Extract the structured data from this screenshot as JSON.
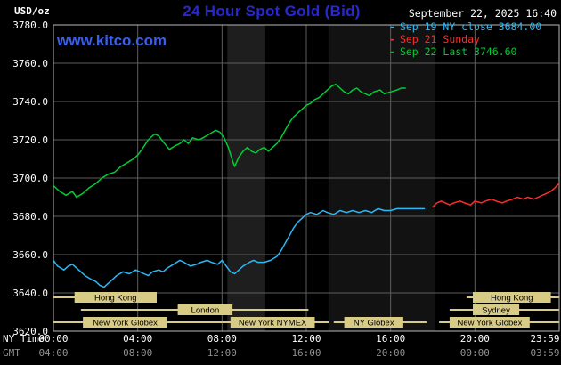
{
  "header": {
    "units": "USD/oz",
    "title": "24 Hour Spot Gold (Bid)",
    "datetime": "September 22, 2025 16:40",
    "watermark": "www.kitco.com",
    "legend": [
      {
        "label": "Sep 19 NY close 3684.00",
        "color": "#2cb8f5"
      },
      {
        "label": "Sep 21 Sunday",
        "color": "#ff2a2a"
      },
      {
        "label": "Sep 22 Last 3746.60",
        "color": "#00cc33"
      }
    ]
  },
  "colors": {
    "background": "#000000",
    "title": "#2828cf",
    "watermark": "#3a5fe8",
    "grid": "#5e5e5e",
    "frame": "#b8b8b8",
    "session": "#d8cb86",
    "ny_axis_text": "#ffffff",
    "gmt_axis_text": "#8f8f8f"
  },
  "axes": {
    "y_ticks": [
      "3780.0",
      "3760.0",
      "3740.0",
      "3720.0",
      "3700.0",
      "3680.0",
      "3660.0",
      "3640.0",
      "3620.0"
    ],
    "x_label_ny": "NY Time",
    "x_label_gmt": "GMT",
    "x_ticks_ny": [
      "00:00",
      "04:00",
      "08:00",
      "12:00",
      "16:00",
      "20:00",
      "23:59"
    ],
    "x_ticks_gmt": [
      "04:00",
      "08:00",
      "12:00",
      "16:00",
      "20:00",
      "00:00",
      "03:59"
    ]
  },
  "sessions": [
    {
      "row": 0,
      "bar": [
        0,
        4.9
      ],
      "label": "Hong Kong",
      "label_span": [
        1.0,
        4.9
      ]
    },
    {
      "row": 0,
      "bar": [
        19.6,
        23.98
      ],
      "label": "Hong Kong",
      "label_span": [
        19.9,
        23.6
      ]
    },
    {
      "row": 1,
      "bar": [
        1.3,
        12.1
      ],
      "label": "London",
      "label_span": [
        5.9,
        8.5
      ]
    },
    {
      "row": 1,
      "bar": [
        18.8,
        23.98
      ],
      "label": "Sydney",
      "label_span": [
        19.9,
        22.1
      ]
    },
    {
      "row": 2,
      "bar": [
        0,
        8.0
      ],
      "label": "New York Globex",
      "label_span": [
        1.4,
        5.4
      ]
    },
    {
      "row": 2,
      "bar": [
        8.0,
        13.1
      ],
      "label": "New York NYMEX",
      "label_span": [
        8.4,
        12.4
      ]
    },
    {
      "row": 2,
      "bar": [
        13.3,
        17.7
      ],
      "label": "NY Globex",
      "label_span": [
        13.8,
        16.6
      ]
    },
    {
      "row": 2,
      "bar": [
        18.3,
        23.98
      ],
      "label": "New York Globex",
      "label_span": [
        18.8,
        22.6
      ]
    }
  ],
  "chart_data": {
    "type": "line",
    "title": "24 Hour Spot Gold (Bid)",
    "xlabel": "NY Time (hours 00:00-23:59)",
    "ylabel": "USD/oz",
    "ylim": [
      3620,
      3780
    ],
    "xlim_hours": [
      0,
      24
    ],
    "grid": true,
    "legend_position": "top-right",
    "bands": [
      {
        "start": 8.25,
        "end": 10.05,
        "color": "#1e1e1e"
      },
      {
        "start": 13.05,
        "end": 18.1,
        "color": "#121212"
      }
    ],
    "series": [
      {
        "id": "sep19",
        "name": "Sep 19 NY close 3684.00",
        "color": "#2cb8f5",
        "points": [
          [
            0,
            3657
          ],
          [
            0.2,
            3654
          ],
          [
            0.5,
            3652
          ],
          [
            0.7,
            3654
          ],
          [
            0.9,
            3655
          ],
          [
            1.1,
            3653
          ],
          [
            1.3,
            3651
          ],
          [
            1.5,
            3649
          ],
          [
            1.8,
            3647
          ],
          [
            2,
            3646
          ],
          [
            2.2,
            3644
          ],
          [
            2.4,
            3643
          ],
          [
            2.6,
            3645
          ],
          [
            2.8,
            3647
          ],
          [
            3,
            3649
          ],
          [
            3.3,
            3651
          ],
          [
            3.6,
            3650
          ],
          [
            3.9,
            3652
          ],
          [
            4.1,
            3651
          ],
          [
            4.3,
            3650
          ],
          [
            4.5,
            3649
          ],
          [
            4.7,
            3651
          ],
          [
            5,
            3652
          ],
          [
            5.2,
            3651
          ],
          [
            5.4,
            3653
          ],
          [
            5.7,
            3655
          ],
          [
            6,
            3657
          ],
          [
            6.2,
            3656
          ],
          [
            6.5,
            3654
          ],
          [
            6.8,
            3655
          ],
          [
            7,
            3656
          ],
          [
            7.3,
            3657
          ],
          [
            7.5,
            3656
          ],
          [
            7.8,
            3655
          ],
          [
            8,
            3657
          ],
          [
            8.2,
            3654
          ],
          [
            8.4,
            3651
          ],
          [
            8.6,
            3650
          ],
          [
            8.8,
            3652
          ],
          [
            9,
            3654
          ],
          [
            9.3,
            3656
          ],
          [
            9.5,
            3657
          ],
          [
            9.7,
            3656
          ],
          [
            10,
            3656
          ],
          [
            10.3,
            3657
          ],
          [
            10.6,
            3659
          ],
          [
            10.8,
            3662
          ],
          [
            11,
            3666
          ],
          [
            11.2,
            3670
          ],
          [
            11.4,
            3674
          ],
          [
            11.6,
            3677
          ],
          [
            11.8,
            3679
          ],
          [
            12,
            3681
          ],
          [
            12.2,
            3682
          ],
          [
            12.5,
            3681
          ],
          [
            12.8,
            3683
          ],
          [
            13,
            3682
          ],
          [
            13.3,
            3681
          ],
          [
            13.6,
            3683
          ],
          [
            13.9,
            3682
          ],
          [
            14.2,
            3683
          ],
          [
            14.5,
            3682
          ],
          [
            14.8,
            3683
          ],
          [
            15.1,
            3682
          ],
          [
            15.4,
            3684
          ],
          [
            15.7,
            3683
          ],
          [
            16,
            3683
          ],
          [
            16.3,
            3684
          ],
          [
            16.7,
            3684
          ],
          [
            17.1,
            3684
          ],
          [
            17.6,
            3684
          ]
        ]
      },
      {
        "id": "sep21",
        "name": "Sep 21 Sunday",
        "color": "#ff2a2a",
        "points": [
          [
            18,
            3685
          ],
          [
            18.2,
            3687
          ],
          [
            18.4,
            3688
          ],
          [
            18.6,
            3687
          ],
          [
            18.8,
            3686
          ],
          [
            19,
            3687
          ],
          [
            19.3,
            3688
          ],
          [
            19.5,
            3687
          ],
          [
            19.8,
            3686
          ],
          [
            20,
            3688
          ],
          [
            20.3,
            3687
          ],
          [
            20.5,
            3688
          ],
          [
            20.8,
            3689
          ],
          [
            21,
            3688
          ],
          [
            21.3,
            3687
          ],
          [
            21.5,
            3688
          ],
          [
            21.8,
            3689
          ],
          [
            22,
            3690
          ],
          [
            22.3,
            3689
          ],
          [
            22.5,
            3690
          ],
          [
            22.8,
            3689
          ],
          [
            23,
            3690
          ],
          [
            23.2,
            3691
          ],
          [
            23.4,
            3692
          ],
          [
            23.6,
            3693
          ],
          [
            23.8,
            3695
          ],
          [
            23.97,
            3697
          ]
        ]
      },
      {
        "id": "sep22",
        "name": "Sep 22 Last 3746.60",
        "color": "#00cc33",
        "points": [
          [
            0,
            3696
          ],
          [
            0.3,
            3693
          ],
          [
            0.6,
            3691
          ],
          [
            0.9,
            3693
          ],
          [
            1.1,
            3690
          ],
          [
            1.4,
            3692
          ],
          [
            1.7,
            3695
          ],
          [
            2,
            3697
          ],
          [
            2.3,
            3700
          ],
          [
            2.6,
            3702
          ],
          [
            2.9,
            3703
          ],
          [
            3.2,
            3706
          ],
          [
            3.5,
            3708
          ],
          [
            3.8,
            3710
          ],
          [
            4,
            3712
          ],
          [
            4.2,
            3715
          ],
          [
            4.5,
            3720
          ],
          [
            4.8,
            3723
          ],
          [
            5,
            3722
          ],
          [
            5.2,
            3719
          ],
          [
            5.5,
            3715
          ],
          [
            5.8,
            3717
          ],
          [
            6,
            3718
          ],
          [
            6.2,
            3720
          ],
          [
            6.4,
            3718
          ],
          [
            6.6,
            3721
          ],
          [
            6.9,
            3720
          ],
          [
            7.1,
            3721
          ],
          [
            7.4,
            3723
          ],
          [
            7.7,
            3725
          ],
          [
            7.9,
            3724
          ],
          [
            8.1,
            3721
          ],
          [
            8.3,
            3716
          ],
          [
            8.5,
            3709
          ],
          [
            8.6,
            3706
          ],
          [
            8.8,
            3711
          ],
          [
            9,
            3714
          ],
          [
            9.2,
            3716
          ],
          [
            9.4,
            3714
          ],
          [
            9.6,
            3713
          ],
          [
            9.8,
            3715
          ],
          [
            10,
            3716
          ],
          [
            10.2,
            3714
          ],
          [
            10.4,
            3716
          ],
          [
            10.6,
            3718
          ],
          [
            10.8,
            3721
          ],
          [
            11,
            3725
          ],
          [
            11.2,
            3729
          ],
          [
            11.4,
            3732
          ],
          [
            11.6,
            3734
          ],
          [
            11.8,
            3736
          ],
          [
            12,
            3738
          ],
          [
            12.2,
            3739
          ],
          [
            12.4,
            3741
          ],
          [
            12.6,
            3742
          ],
          [
            12.8,
            3744
          ],
          [
            13,
            3746
          ],
          [
            13.2,
            3748
          ],
          [
            13.4,
            3749
          ],
          [
            13.6,
            3747
          ],
          [
            13.8,
            3745
          ],
          [
            14,
            3744
          ],
          [
            14.2,
            3746
          ],
          [
            14.4,
            3747
          ],
          [
            14.6,
            3745
          ],
          [
            14.8,
            3744
          ],
          [
            15,
            3743
          ],
          [
            15.2,
            3745
          ],
          [
            15.5,
            3746
          ],
          [
            15.7,
            3744
          ],
          [
            16,
            3745
          ],
          [
            16.3,
            3746
          ],
          [
            16.5,
            3747
          ],
          [
            16.7,
            3747
          ]
        ]
      }
    ]
  }
}
